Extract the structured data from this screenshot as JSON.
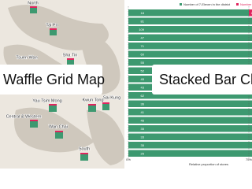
{
  "banner_left": "Waffle Grid Map",
  "banner_right": "Stacked Bar Chart",
  "map": {
    "labels": [
      "North",
      "Tai Po",
      "Sha Tin",
      "Tsuen Wan",
      "Yau Tsim Mong",
      "Kwun Tong",
      "Sai Kung",
      "Central & Western",
      "Wan Chai",
      "South"
    ]
  },
  "chart_data": {
    "type": "bar",
    "stacked": true,
    "series": [
      {
        "name": "Number of 7-Eleven in the district",
        "color": "#3d9970",
        "values": [
          18,
          81,
          109,
          47,
          71,
          60,
          55,
          52,
          45,
          43,
          62,
          36,
          41,
          46,
          35,
          33,
          35,
          25
        ]
      },
      {
        "name": "Number of Circle K",
        "color": "#e0245e",
        "values": [
          6,
          22,
          30,
          13,
          20,
          15,
          14,
          12,
          11,
          11,
          15,
          9,
          10,
          11,
          9,
          8,
          9,
          6
        ]
      }
    ],
    "xlabel": "Relative proportion of stores",
    "xlim": [
      0,
      100
    ],
    "xticks": [
      {
        "value": 0,
        "label": "0%"
      },
      {
        "value": 75,
        "label": "75%"
      },
      {
        "value": 100,
        "label": "100%"
      }
    ]
  }
}
